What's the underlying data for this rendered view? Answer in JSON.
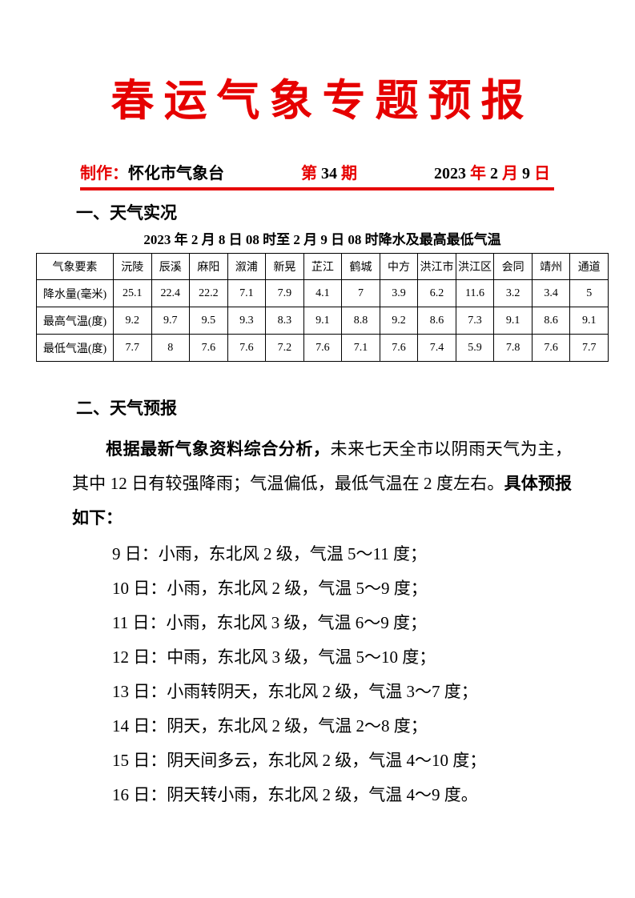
{
  "page": {
    "accent_red": "#e60000",
    "text_color": "#000000",
    "background": "#ffffff"
  },
  "title": "春运气象专题预报",
  "meta": {
    "produce_label": "制作：",
    "producer": "怀化市气象台",
    "issue": {
      "prefix": "第",
      "number": "34",
      "suffix": "期"
    },
    "date": {
      "year": "2023",
      "year_unit": "年",
      "month": "2",
      "month_unit": "月",
      "day": "9",
      "day_unit": "日"
    }
  },
  "section1": {
    "heading": "一、天气实况",
    "table_title": "2023 年 2 月 8 日 08 时至 2 月 9 日 08 时降水及最高最低气温"
  },
  "table": {
    "header": [
      "气象要素",
      "沅陵",
      "辰溪",
      "麻阳",
      "溆浦",
      "新晃",
      "芷江",
      "鹤城",
      "中方",
      "洪江市",
      "洪江区",
      "会同",
      "靖州",
      "通道"
    ],
    "rows": [
      [
        "降水量(毫米)",
        "25.1",
        "22.4",
        "22.2",
        "7.1",
        "7.9",
        "4.1",
        "7",
        "3.9",
        "6.2",
        "11.6",
        "3.2",
        "3.4",
        "5"
      ],
      [
        "最高气温(度)",
        "9.2",
        "9.7",
        "9.5",
        "9.3",
        "8.3",
        "9.1",
        "8.8",
        "9.2",
        "8.6",
        "7.3",
        "9.1",
        "8.6",
        "9.1"
      ],
      [
        "最低气温(度)",
        "7.7",
        "8",
        "7.6",
        "7.6",
        "7.2",
        "7.6",
        "7.1",
        "7.6",
        "7.4",
        "5.9",
        "7.8",
        "7.6",
        "7.7"
      ]
    ]
  },
  "section2": {
    "heading": "二、天气预报",
    "para": {
      "seg1_bold": "根据最新气象资料综合分析，",
      "seg2": "未来七天全市以阴雨天气为主，其中 12 日有较强降雨；气温偏低，最低气温在 2 度左右。",
      "seg3_bold": "具体预报如下："
    },
    "forecasts": [
      "9 日：小雨，东北风 2 级，气温 5～11 度；",
      "10 日：小雨，东北风 2 级，气温 5～9 度；",
      "11 日：小雨，东北风 3 级，气温 6～9 度；",
      "12 日：中雨，东北风 3 级，气温 5～10 度；",
      "13 日：小雨转阴天，东北风 2 级，气温 3～7 度；",
      "14 日：阴天，东北风 2 级，气温 2～8 度；",
      "15 日：阴天间多云，东北风 2 级，气温 4～10 度；",
      "16 日：阴天转小雨，东北风 2 级，气温 4～9 度。"
    ]
  }
}
